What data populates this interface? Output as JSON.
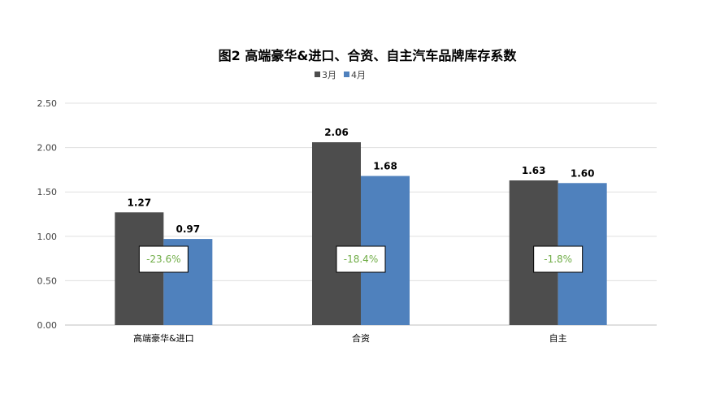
{
  "chart_data": {
    "type": "bar",
    "title": "图2  高端豪华&进口、合资、自主汽车品牌库存系数",
    "categories": [
      "高端豪华&进口",
      "合资",
      "自主"
    ],
    "series": [
      {
        "name": "3月",
        "values": [
          1.27,
          2.06,
          1.63
        ],
        "color": "#4d4d4d"
      },
      {
        "name": "4月",
        "values": [
          0.97,
          1.68,
          1.6
        ],
        "color": "#4f81bd"
      }
    ],
    "data_labels": [
      [
        "1.27",
        "2.06",
        "1.63"
      ],
      [
        "0.97",
        "1.68",
        "1.60"
      ]
    ],
    "annotations": [
      "-23.6%",
      "-18.4%",
      "-1.8%"
    ],
    "annotation_color": "#70ad47",
    "ylim": [
      0,
      2.5
    ],
    "yticks": [
      "0.00",
      "0.50",
      "1.00",
      "1.50",
      "2.00",
      "2.50"
    ],
    "grid": true,
    "legend": "top",
    "xlabel": "",
    "ylabel": ""
  }
}
